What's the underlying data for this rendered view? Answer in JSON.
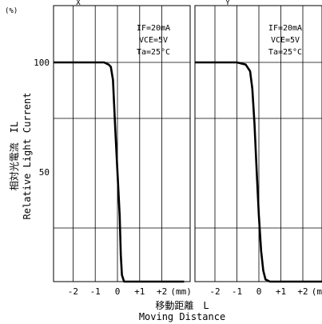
{
  "figure": {
    "y_unit": "(%)",
    "y_label_jp": "相対光電流　IL",
    "y_label_en": "Relative Light Current",
    "x_label_jp": "移動距離　L",
    "x_label_en": "Moving Distance",
    "top_markers": [
      "X",
      "Y"
    ]
  },
  "chart_data": [
    {
      "type": "line",
      "direction": "X",
      "conditions": [
        "IF=20mA",
        "VCE=5V",
        "Ta=25°C"
      ],
      "x_ticks": [
        "-2",
        "-1",
        "0",
        "+1",
        "+2",
        "(mm)"
      ],
      "y_ticks": [
        "100",
        "50"
      ],
      "xlim": [
        -3.1,
        3.0
      ],
      "ylim": [
        0,
        125
      ],
      "grid": true,
      "series": [
        {
          "x": [
            -3.1,
            -0.6,
            -0.4,
            -0.3,
            -0.2,
            -0.1,
            0.0,
            0.1,
            0.15,
            0.2,
            0.3,
            0.5,
            3.0
          ],
          "y": [
            100,
            100,
            99,
            98,
            92,
            70,
            50,
            30,
            12,
            3,
            0,
            0,
            0
          ]
        }
      ]
    },
    {
      "type": "line",
      "direction": "Y",
      "conditions": [
        "IF=20mA",
        "VCE=5V",
        "Ta=25°C"
      ],
      "x_ticks": [
        "-2",
        "-1",
        "0",
        "+1",
        "+2",
        "(mm)"
      ],
      "y_ticks": [],
      "xlim": [
        -3.1,
        3.0
      ],
      "ylim": [
        0,
        125
      ],
      "grid": true,
      "series": [
        {
          "x": [
            -3.1,
            -1.0,
            -0.6,
            -0.4,
            -0.3,
            -0.2,
            -0.1,
            0.0,
            0.1,
            0.2,
            0.3,
            0.5,
            3.0
          ],
          "y": [
            100,
            100,
            99,
            96,
            88,
            72,
            50,
            30,
            14,
            5,
            1,
            0,
            0
          ]
        }
      ]
    }
  ]
}
